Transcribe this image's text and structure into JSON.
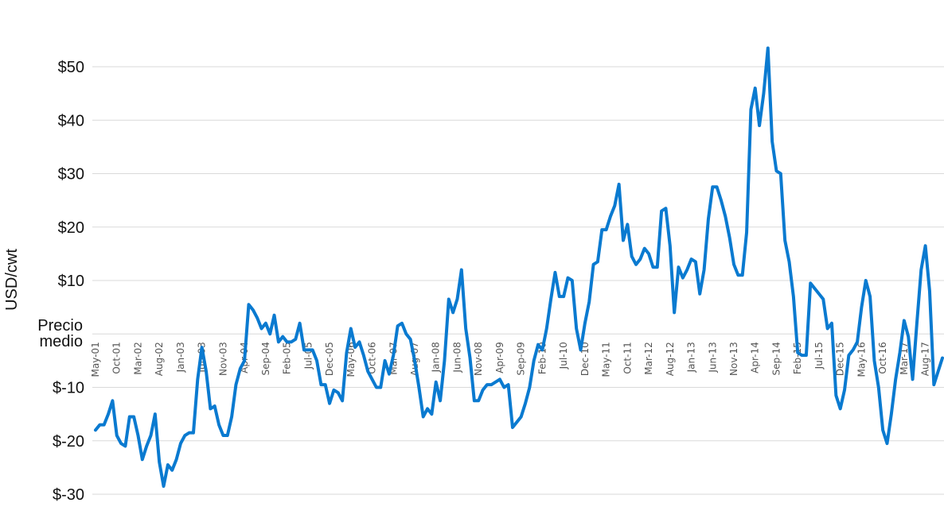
{
  "chart_data": {
    "type": "line",
    "title": "",
    "ylabel": "USD/cwt",
    "xlabel": "",
    "ylim": [
      -33,
      57
    ],
    "grid": true,
    "legend": "none",
    "line_color": "#0a7ad0",
    "zero_label_lines": [
      "Precio",
      "medio"
    ],
    "y_ticks": [
      {
        "value": 50,
        "label": "$50"
      },
      {
        "value": 40,
        "label": "$40"
      },
      {
        "value": 30,
        "label": "$30"
      },
      {
        "value": 20,
        "label": "$20"
      },
      {
        "value": 10,
        "label": "$10"
      },
      {
        "value": -10,
        "label": "$-10"
      },
      {
        "value": -20,
        "label": "$-20"
      },
      {
        "value": -30,
        "label": "$-30"
      }
    ],
    "x_ticks": [
      {
        "i": 0,
        "label": "May-01"
      },
      {
        "i": 5,
        "label": "Oct-01"
      },
      {
        "i": 10,
        "label": "Mar-02"
      },
      {
        "i": 15,
        "label": "Aug-02"
      },
      {
        "i": 20,
        "label": "Jan-03"
      },
      {
        "i": 25,
        "label": "Jun-03"
      },
      {
        "i": 30,
        "label": "Nov-03"
      },
      {
        "i": 35,
        "label": "Apr-04"
      },
      {
        "i": 40,
        "label": "Sep-04"
      },
      {
        "i": 45,
        "label": "Feb-05"
      },
      {
        "i": 50,
        "label": "Jul-05"
      },
      {
        "i": 55,
        "label": "Dec-05"
      },
      {
        "i": 60,
        "label": "May-06"
      },
      {
        "i": 65,
        "label": "Oct-06"
      },
      {
        "i": 70,
        "label": "Mar-07"
      },
      {
        "i": 75,
        "label": "Aug-07"
      },
      {
        "i": 80,
        "label": "Jan-08"
      },
      {
        "i": 85,
        "label": "Jun-08"
      },
      {
        "i": 90,
        "label": "Nov-08"
      },
      {
        "i": 95,
        "label": "Apr-09"
      },
      {
        "i": 100,
        "label": "Sep-09"
      },
      {
        "i": 105,
        "label": "Feb-10"
      },
      {
        "i": 110,
        "label": "Jul-10"
      },
      {
        "i": 115,
        "label": "Dec-10"
      },
      {
        "i": 120,
        "label": "May-11"
      },
      {
        "i": 125,
        "label": "Oct-11"
      },
      {
        "i": 130,
        "label": "Mar-12"
      },
      {
        "i": 135,
        "label": "Aug-12"
      },
      {
        "i": 140,
        "label": "Jan-13"
      },
      {
        "i": 145,
        "label": "Jun-13"
      },
      {
        "i": 150,
        "label": "Nov-13"
      },
      {
        "i": 155,
        "label": "Apr-14"
      },
      {
        "i": 160,
        "label": "Sep-14"
      },
      {
        "i": 165,
        "label": "Feb-15"
      },
      {
        "i": 170,
        "label": "Jul-15"
      },
      {
        "i": 175,
        "label": "Dec-15"
      },
      {
        "i": 180,
        "label": "May-16"
      },
      {
        "i": 185,
        "label": "Oct-16"
      },
      {
        "i": 190,
        "label": "Mar-17"
      },
      {
        "i": 195,
        "label": "Aug-17"
      }
    ],
    "series": [
      {
        "values": [
          -18,
          -17,
          -17,
          -15,
          -12.5,
          -19,
          -20.5,
          -21,
          -15.5,
          -15.5,
          -19,
          -23.5,
          -21,
          -19,
          -15,
          -24,
          -28.5,
          -24.5,
          -25.5,
          -23.5,
          -20.5,
          -19,
          -18.5,
          -18.5,
          -8.5,
          -2.5,
          -7,
          -14,
          -13.5,
          -17,
          -19,
          -19,
          -15.5,
          -9.5,
          -6.5,
          -5,
          5.5,
          4.5,
          3,
          1,
          2,
          0,
          3.5,
          -1.5,
          -0.5,
          -1.5,
          -1.5,
          -1,
          2,
          -3,
          -3,
          -3,
          -5,
          -9.5,
          -9.5,
          -13,
          -10.5,
          -11,
          -12.5,
          -3.5,
          1,
          -2.5,
          -1.5,
          -4,
          -7,
          -8.5,
          -10,
          -10,
          -5,
          -7.5,
          -4,
          1.5,
          2,
          0,
          -1,
          -5,
          -10,
          -15.5,
          -14,
          -15,
          -9,
          -12.5,
          -5,
          6.5,
          4,
          6.5,
          12,
          1,
          -4.5,
          -12.5,
          -12.5,
          -10.5,
          -9.5,
          -9.5,
          -9,
          -8.5,
          -10,
          -9.5,
          -17.5,
          -16.5,
          -15.5,
          -13,
          -10,
          -5,
          -2,
          -3,
          1,
          6.5,
          11.5,
          7,
          7,
          10.5,
          10,
          1,
          -3,
          2,
          6,
          13,
          13.5,
          19.5,
          19.5,
          22,
          24,
          28,
          17.5,
          20.5,
          14.5,
          13,
          14,
          16,
          15,
          12.5,
          12.5,
          23,
          23.5,
          16.5,
          4,
          12.5,
          10.5,
          12,
          14,
          13.5,
          7.5,
          12,
          21.5,
          27.5,
          27.5,
          25,
          22,
          18,
          13,
          11,
          11,
          19,
          42,
          46,
          39,
          45,
          53.5,
          36,
          30.5,
          30,
          17.5,
          13.5,
          7,
          -3.5,
          -4,
          -4,
          9.5,
          8.5,
          7.5,
          6.5,
          1,
          2,
          -11.5,
          -14,
          -10.5,
          -4,
          -3,
          -1.5,
          5,
          10,
          7,
          -5,
          -10,
          -18,
          -20.5,
          -15,
          -8.5,
          -3.5,
          2.5,
          -0.5,
          -8.5,
          2,
          12,
          16.5,
          8,
          -9.5,
          -7,
          -4.5
        ]
      }
    ]
  }
}
